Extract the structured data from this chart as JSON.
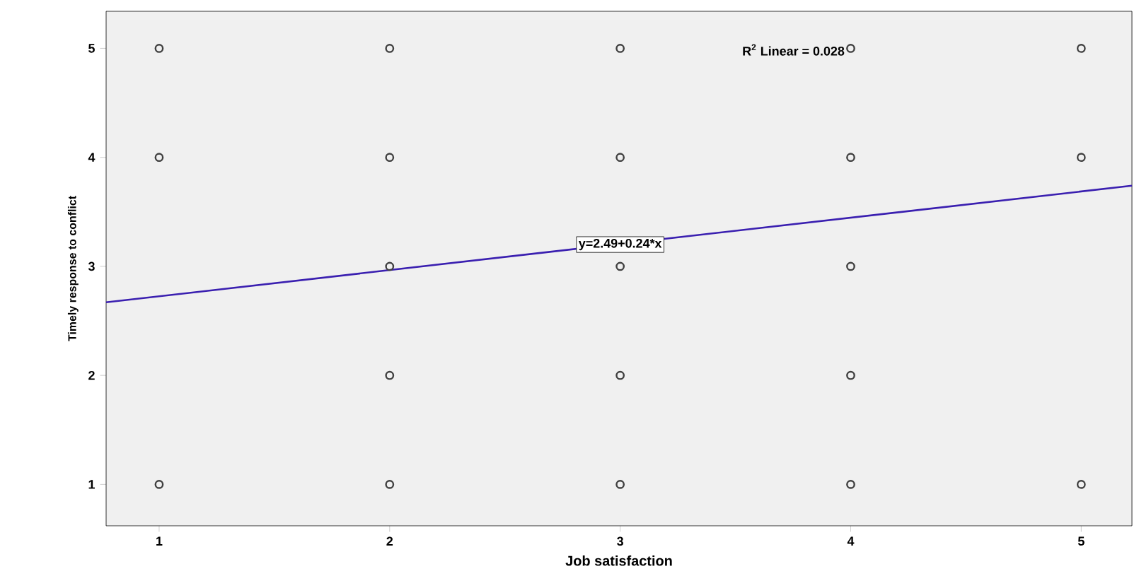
{
  "chart_data": {
    "type": "scatter",
    "xlabel": "Job satisfaction",
    "ylabel": "Timely response to conflict",
    "xlim": [
      0.77,
      5.22
    ],
    "ylim": [
      0.62,
      5.34
    ],
    "xticks": [
      1,
      2,
      3,
      4,
      5
    ],
    "yticks": [
      1,
      2,
      3,
      4,
      5
    ],
    "grid": false,
    "series": [
      {
        "marker": "circle",
        "color": "#404040",
        "x": [
          1,
          1,
          1,
          2,
          2,
          2,
          2,
          2,
          3,
          3,
          3,
          3,
          3,
          4,
          4,
          4,
          4,
          4,
          5,
          5,
          5
        ],
        "values": [
          5,
          4,
          1,
          5,
          4,
          3,
          2,
          1,
          5,
          4,
          3,
          2,
          1,
          5,
          4,
          3,
          2,
          1,
          5,
          4,
          1
        ]
      },
      {
        "type": "line",
        "marker": "none",
        "color": "#3a1fb0",
        "x": [
          0.77,
          5.22
        ],
        "values": [
          2.67,
          3.74
        ]
      }
    ],
    "annotations": [
      "R$^{2}$ Linear = 0.028",
      {
        "text": "y=2.49+0.24*x",
        "x": 3,
        "y": 3.2
      }
    ]
  }
}
